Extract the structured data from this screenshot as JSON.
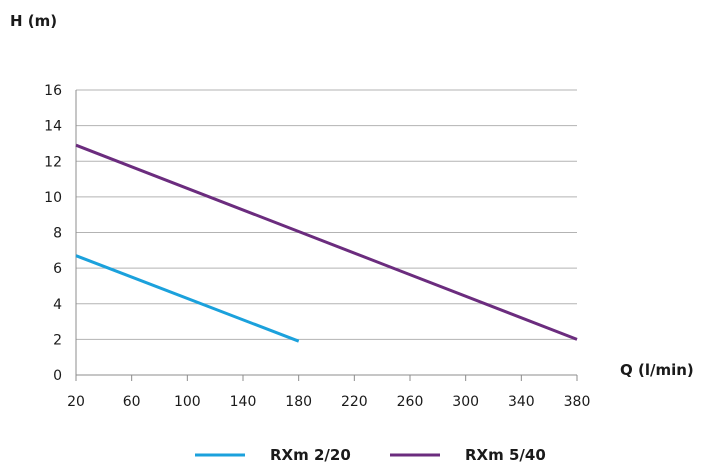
{
  "chart_data": {
    "type": "line",
    "title": "",
    "xlabel": "Q (l/min)",
    "ylabel": "H (m)",
    "xlim": [
      20,
      380
    ],
    "ylim": [
      0,
      16
    ],
    "x_ticks": [
      20,
      60,
      100,
      140,
      180,
      220,
      260,
      300,
      340,
      380
    ],
    "y_ticks": [
      0,
      2,
      4,
      6,
      8,
      10,
      12,
      14,
      16
    ],
    "grid": "horizontal",
    "legend_position": "bottom",
    "series": [
      {
        "name": "RXm 2/20",
        "color": "#1ba1dc",
        "x": [
          20,
          180
        ],
        "y": [
          6.7,
          1.9
        ]
      },
      {
        "name": "RXm 5/40",
        "color": "#6b2c7e",
        "x": [
          20,
          380
        ],
        "y": [
          12.9,
          2.0
        ]
      }
    ]
  }
}
